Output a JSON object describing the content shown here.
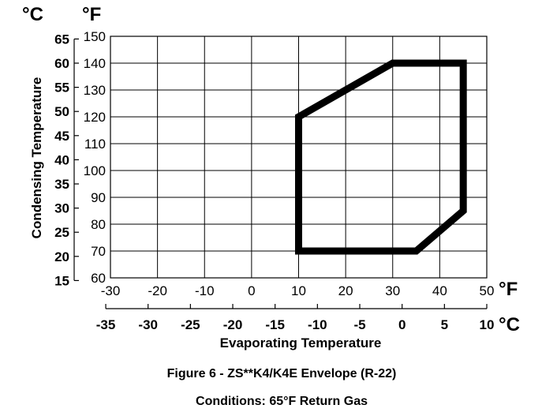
{
  "chart_data": {
    "type": "area",
    "caption": "Figure 6 - ZS**K4/K4E Envelope (R-22)",
    "conditions": "Conditions: 65°F Return Gas",
    "xlabel": "Evaporating Temperature",
    "ylabel": "Condensing Temperature",
    "x_unit_primary": "°F",
    "x_unit_secondary": "°C",
    "y_unit_primary": "°F",
    "y_unit_secondary": "°C",
    "xlim": [
      -30,
      50
    ],
    "ylim": [
      60,
      150
    ],
    "grid": true,
    "x_ticks_f": [
      "-30",
      "-20",
      "-10",
      "0",
      "10",
      "20",
      "30",
      "40",
      "50"
    ],
    "x_ticks_c": [
      "-35",
      "-30",
      "-25",
      "-20",
      "-15",
      "-10",
      "-5",
      "0",
      "5",
      "10"
    ],
    "y_ticks_f": [
      "60",
      "70",
      "80",
      "90",
      "100",
      "110",
      "120",
      "130",
      "140",
      "150"
    ],
    "y_ticks_c": [
      "15",
      "20",
      "25",
      "30",
      "35",
      "40",
      "45",
      "50",
      "55",
      "60",
      "65"
    ],
    "envelope": {
      "x": [
        10,
        10,
        30,
        45,
        45,
        35,
        10
      ],
      "y": [
        70,
        120,
        140,
        140,
        85,
        70,
        70
      ]
    }
  }
}
